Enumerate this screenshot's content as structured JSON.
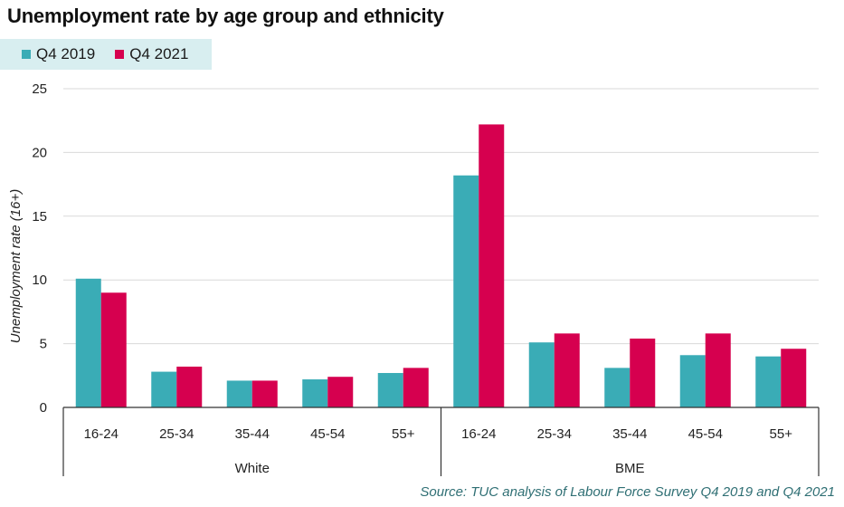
{
  "chart_data": {
    "type": "bar",
    "title": "Unemployment rate by age group and ethnicity",
    "ylabel": "Unemployment rate (16+)",
    "xlabel": "",
    "ylim": [
      0,
      25
    ],
    "yticks": [
      0,
      5,
      10,
      15,
      20,
      25
    ],
    "grid": true,
    "legend_position": "top-left",
    "groups": [
      "White",
      "BME"
    ],
    "categories": [
      "16-24",
      "25-34",
      "35-44",
      "45-54",
      "55+",
      "16-24",
      "25-34",
      "35-44",
      "45-54",
      "55+"
    ],
    "series": [
      {
        "name": "Q4 2019",
        "color": "#3aacb6",
        "values": [
          10.1,
          2.8,
          2.1,
          2.2,
          2.7,
          18.2,
          5.1,
          3.1,
          4.1,
          4.0
        ]
      },
      {
        "name": "Q4 2021",
        "color": "#d6004f",
        "values": [
          9.0,
          3.2,
          2.1,
          2.4,
          3.1,
          22.2,
          5.8,
          5.4,
          5.8,
          4.6
        ]
      }
    ],
    "source": "Source: TUC analysis of Labour Force Survey Q4 2019 and Q4 2021"
  }
}
